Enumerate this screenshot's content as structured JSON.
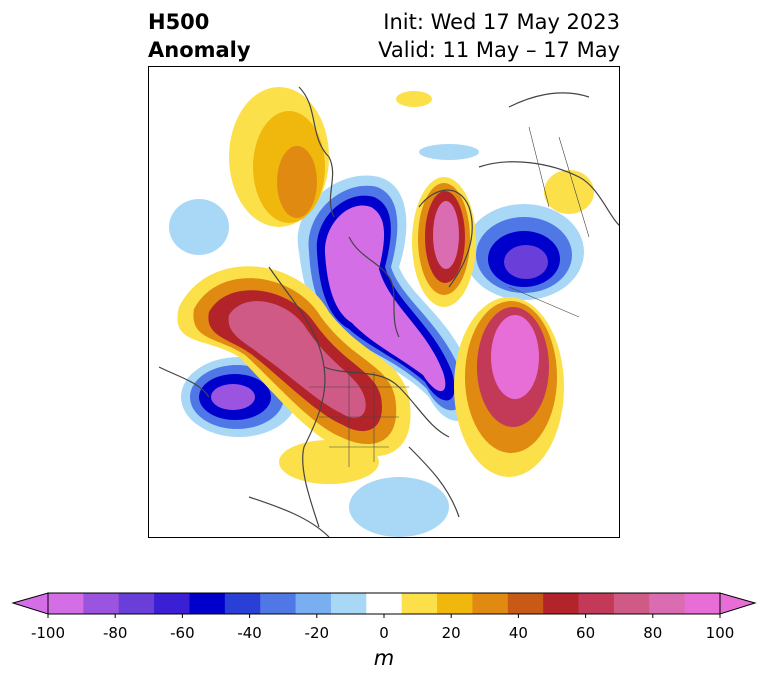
{
  "title": {
    "left_line1": "H500",
    "left_line2": "Anomaly",
    "right_line1": "Init: Wed 17 May 2023",
    "right_line2": "Valid: 11 May – 17 May"
  },
  "colorbar": {
    "unit": "m",
    "ticks": [
      "-100",
      "-80",
      "-60",
      "-40",
      "-20",
      "0",
      "20",
      "40",
      "60",
      "80",
      "100"
    ],
    "colors": [
      "#d46ee6",
      "#9a54e0",
      "#6a3fd9",
      "#3a1fd4",
      "#0000cc",
      "#2a3fd6",
      "#4f77e6",
      "#79aef0",
      "#a9d8f7",
      "#ffffff",
      "#fbe04a",
      "#f0b80c",
      "#e08a12",
      "#c95a16",
      "#b2232a",
      "#c23a58",
      "#d05a86",
      "#da6cb2",
      "#e66ed6"
    ],
    "under_color": "#d46ee6",
    "over_color": "#e66ed6"
  },
  "map": {
    "projection": "polar-stereographic",
    "region": "North America / Northern Hemisphere",
    "coastline_color": "#444444"
  }
}
